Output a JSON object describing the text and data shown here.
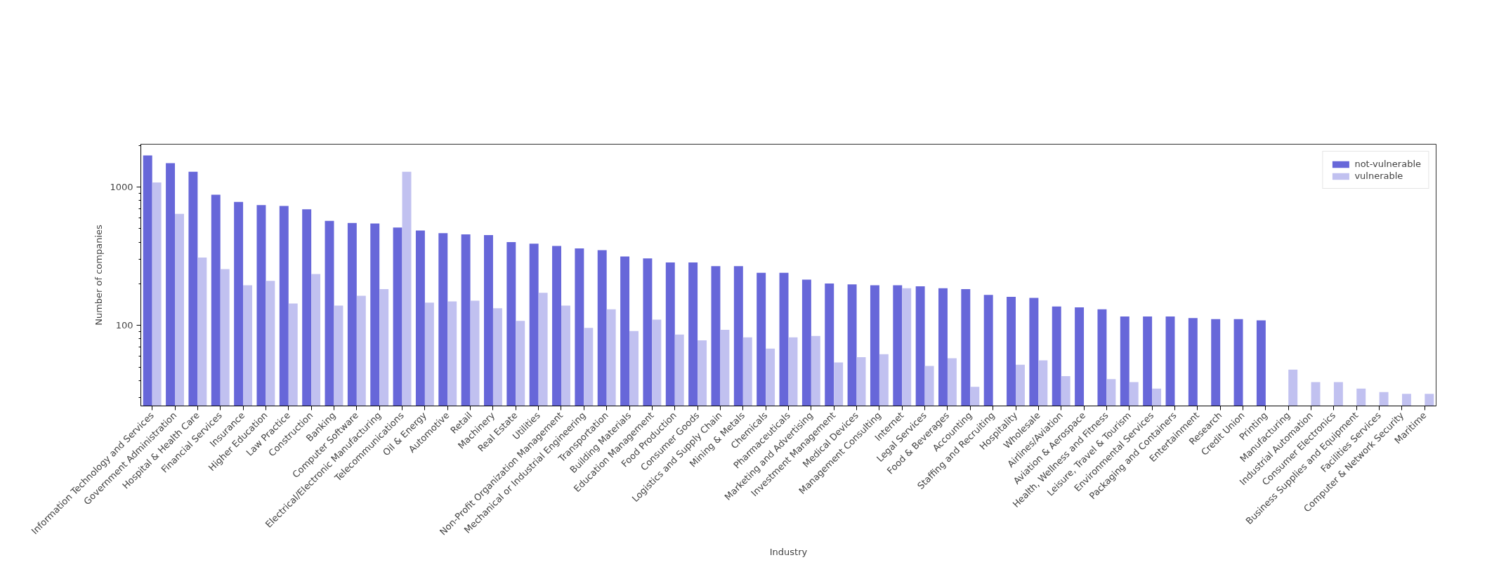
{
  "chart_data": {
    "type": "bar",
    "xlabel": "Industry",
    "ylabel": "Number of companies",
    "log": true,
    "grid": false,
    "legend": "top right",
    "categories": [
      "Information Technology and Services",
      "Government Administration",
      "Hospital & Health Care",
      "Financial Services",
      "Insurance",
      "Higher Education",
      "Law Practice",
      "Construction",
      "Banking",
      "Computer Software",
      "Electrical/Electronic Manufacturing",
      "Telecommunications",
      "Oil & Energy",
      "Automotive",
      "Retail",
      "Machinery",
      "Real Estate",
      "Utilities",
      "Non-Profit Organization Management",
      "Mechanical or Industrial Engineering",
      "Transportation",
      "Building Materials",
      "Education Management",
      "Food Production",
      "Consumer Goods",
      "Logistics and Supply Chain",
      "Mining & Metals",
      "Chemicals",
      "Pharmaceuticals",
      "Marketing and Advertising",
      "Investment Management",
      "Medical Devices",
      "Management Consulting",
      "Internet",
      "Legal Services",
      "Food & Beverages",
      "Accounting",
      "Staffing and Recruiting",
      "Hospitality",
      "Wholesale",
      "Airlines/Aviation",
      "Aviation & Aerospace",
      "Health, Wellness and Fitness",
      "Leisure, Travel & Tourism",
      "Environmental Services",
      "Packaging and Containers",
      "Entertainment",
      "Research",
      "Credit Union",
      "Printing",
      "Manufacturing",
      "Industrial Automation",
      "Consumer Electronics",
      "Business Supplies and Equipment",
      "Facilities Services",
      "Computer & Network Security",
      "Maritime"
    ],
    "series": [
      {
        "name": "not-vulnerable",
        "color": "#6767d9",
        "values": [
          1690,
          1490,
          1290,
          880,
          780,
          740,
          730,
          690,
          570,
          550,
          545,
          510,
          485,
          465,
          455,
          450,
          400,
          390,
          375,
          360,
          350,
          315,
          305,
          285,
          285,
          268,
          268,
          240,
          240,
          214,
          201,
          198,
          195,
          195,
          192,
          186,
          183,
          166,
          161,
          158,
          137,
          135,
          131,
          116,
          116,
          116,
          113,
          111,
          111,
          109,
          null,
          null,
          null,
          null,
          null,
          null,
          null
        ]
      },
      {
        "name": "vulnerable",
        "color": "#c1c1f0",
        "values": [
          1080,
          640,
          310,
          255,
          195,
          210,
          144,
          235,
          139,
          164,
          183,
          1290,
          146,
          149,
          151,
          133,
          108,
          172,
          139,
          96,
          131,
          91,
          110,
          86,
          78,
          93,
          82,
          68,
          82,
          84,
          54,
          59,
          62,
          186,
          51,
          58,
          36,
          null,
          52,
          56,
          43,
          null,
          41,
          39,
          35,
          null,
          null,
          null,
          null,
          null,
          48,
          39,
          39,
          35,
          33,
          32,
          32
        ]
      }
    ],
    "ylim": [
      26.2,
      2040
    ],
    "yticks": [
      {
        "value": 30,
        "label": null
      },
      {
        "value": 40,
        "label": null
      },
      {
        "value": 50,
        "label": null
      },
      {
        "value": 60,
        "label": null
      },
      {
        "value": 70,
        "label": null
      },
      {
        "value": 80,
        "label": null
      },
      {
        "value": 90,
        "label": null
      },
      100,
      {
        "value": 200,
        "label": null
      },
      {
        "value": 300,
        "label": null
      },
      {
        "value": 400,
        "label": null
      },
      {
        "value": 500,
        "label": null
      },
      {
        "value": 600,
        "label": null
      },
      {
        "value": 700,
        "label": null
      },
      {
        "value": 800,
        "label": null
      },
      {
        "value": 900,
        "label": null
      },
      1000,
      {
        "value": 2000,
        "label": null
      }
    ]
  }
}
